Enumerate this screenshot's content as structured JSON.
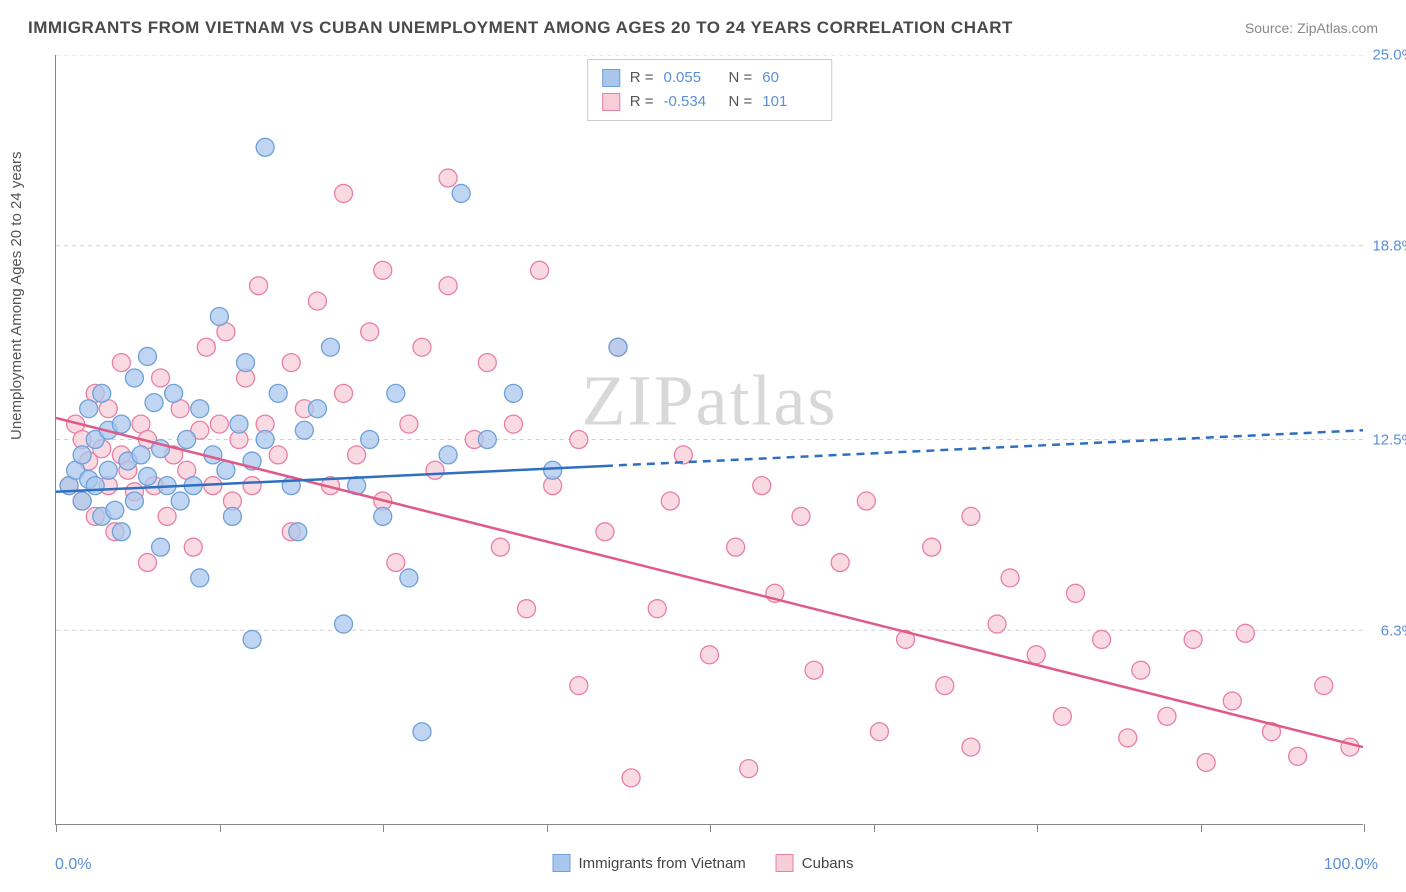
{
  "title": "IMMIGRANTS FROM VIETNAM VS CUBAN UNEMPLOYMENT AMONG AGES 20 TO 24 YEARS CORRELATION CHART",
  "source": "Source: ZipAtlas.com",
  "y_axis_label": "Unemployment Among Ages 20 to 24 years",
  "watermark": "ZIPatlas",
  "chart": {
    "type": "scatter",
    "background_color": "#ffffff",
    "grid_color": "#d0d0d0",
    "axis_color": "#888888",
    "xlim": [
      0,
      100
    ],
    "ylim": [
      0,
      25
    ],
    "x_ticks": [
      0,
      12.5,
      25,
      37.5,
      50,
      62.5,
      75,
      87.5,
      100
    ],
    "y_grid": [
      {
        "v": 25.0,
        "label": "25.0%"
      },
      {
        "v": 18.8,
        "label": "18.8%"
      },
      {
        "v": 12.5,
        "label": "12.5%"
      },
      {
        "v": 6.3,
        "label": "6.3%"
      }
    ],
    "x_min_label": "0.0%",
    "x_max_label": "100.0%",
    "tick_label_color": "#5b8fd6",
    "tick_label_fontsize": 15
  },
  "series": {
    "blue": {
      "name": "Immigrants from Vietnam",
      "marker_fill": "#a9c7ec",
      "marker_stroke": "#6fa0d9",
      "marker_radius": 9,
      "marker_opacity": 0.75,
      "line_color": "#2e6fc0",
      "line_width": 2.5,
      "R": "0.055",
      "N": "60",
      "trend": {
        "x1": 0,
        "y1": 10.8,
        "x2": 100,
        "y2": 12.8,
        "solid_until_x": 42
      },
      "points": [
        [
          1,
          11
        ],
        [
          1.5,
          11.5
        ],
        [
          2,
          12
        ],
        [
          2,
          10.5
        ],
        [
          2.5,
          11.2
        ],
        [
          2.5,
          13.5
        ],
        [
          3,
          12.5
        ],
        [
          3,
          11
        ],
        [
          3.5,
          10
        ],
        [
          3.5,
          14
        ],
        [
          4,
          11.5
        ],
        [
          4,
          12.8
        ],
        [
          4.5,
          10.2
        ],
        [
          5,
          9.5
        ],
        [
          5,
          13
        ],
        [
          5.5,
          11.8
        ],
        [
          6,
          14.5
        ],
        [
          6,
          10.5
        ],
        [
          6.5,
          12
        ],
        [
          7,
          11.3
        ],
        [
          7,
          15.2
        ],
        [
          7.5,
          13.7
        ],
        [
          8,
          12.2
        ],
        [
          8,
          9
        ],
        [
          8.5,
          11
        ],
        [
          9,
          14
        ],
        [
          9.5,
          10.5
        ],
        [
          10,
          12.5
        ],
        [
          10.5,
          11
        ],
        [
          11,
          13.5
        ],
        [
          11,
          8
        ],
        [
          12,
          12
        ],
        [
          12.5,
          16.5
        ],
        [
          13,
          11.5
        ],
        [
          13.5,
          10
        ],
        [
          14,
          13
        ],
        [
          14.5,
          15
        ],
        [
          15,
          6
        ],
        [
          15,
          11.8
        ],
        [
          16,
          12.5
        ],
        [
          16,
          22
        ],
        [
          17,
          14
        ],
        [
          18,
          11
        ],
        [
          18.5,
          9.5
        ],
        [
          19,
          12.8
        ],
        [
          20,
          13.5
        ],
        [
          21,
          15.5
        ],
        [
          22,
          6.5
        ],
        [
          23,
          11
        ],
        [
          24,
          12.5
        ],
        [
          25,
          10
        ],
        [
          26,
          14
        ],
        [
          27,
          8
        ],
        [
          28,
          3
        ],
        [
          30,
          12
        ],
        [
          31,
          20.5
        ],
        [
          33,
          12.5
        ],
        [
          35,
          14
        ],
        [
          38,
          11.5
        ],
        [
          43,
          15.5
        ]
      ]
    },
    "pink": {
      "name": "Cubans",
      "marker_fill": "#f7cdd8",
      "marker_stroke": "#e97fa3",
      "marker_radius": 9,
      "marker_opacity": 0.75,
      "line_color": "#e05a86",
      "line_width": 2.5,
      "R": "-0.534",
      "N": "101",
      "trend": {
        "x1": 0,
        "y1": 13.2,
        "x2": 100,
        "y2": 2.5,
        "solid_until_x": 100
      },
      "points": [
        [
          1,
          11
        ],
        [
          1.5,
          13
        ],
        [
          2,
          10.5
        ],
        [
          2,
          12.5
        ],
        [
          2.5,
          11.8
        ],
        [
          3,
          10
        ],
        [
          3,
          14
        ],
        [
          3.5,
          12.2
        ],
        [
          4,
          11
        ],
        [
          4,
          13.5
        ],
        [
          4.5,
          9.5
        ],
        [
          5,
          12
        ],
        [
          5,
          15
        ],
        [
          5.5,
          11.5
        ],
        [
          6,
          10.8
        ],
        [
          6.5,
          13
        ],
        [
          7,
          12.5
        ],
        [
          7,
          8.5
        ],
        [
          7.5,
          11
        ],
        [
          8,
          14.5
        ],
        [
          8.5,
          10
        ],
        [
          9,
          12
        ],
        [
          9.5,
          13.5
        ],
        [
          10,
          11.5
        ],
        [
          10.5,
          9
        ],
        [
          11,
          12.8
        ],
        [
          11.5,
          15.5
        ],
        [
          12,
          11
        ],
        [
          12.5,
          13
        ],
        [
          13,
          16
        ],
        [
          13.5,
          10.5
        ],
        [
          14,
          12.5
        ],
        [
          14.5,
          14.5
        ],
        [
          15,
          11
        ],
        [
          15.5,
          17.5
        ],
        [
          16,
          13
        ],
        [
          17,
          12
        ],
        [
          18,
          15
        ],
        [
          18,
          9.5
        ],
        [
          19,
          13.5
        ],
        [
          20,
          17
        ],
        [
          21,
          11
        ],
        [
          22,
          14
        ],
        [
          22,
          20.5
        ],
        [
          23,
          12
        ],
        [
          24,
          16
        ],
        [
          25,
          10.5
        ],
        [
          25,
          18
        ],
        [
          26,
          8.5
        ],
        [
          27,
          13
        ],
        [
          28,
          15.5
        ],
        [
          29,
          11.5
        ],
        [
          30,
          17.5
        ],
        [
          30,
          21
        ],
        [
          32,
          12.5
        ],
        [
          33,
          15
        ],
        [
          34,
          9
        ],
        [
          35,
          13
        ],
        [
          36,
          7
        ],
        [
          37,
          18
        ],
        [
          38,
          11
        ],
        [
          40,
          12.5
        ],
        [
          40,
          4.5
        ],
        [
          42,
          9.5
        ],
        [
          43,
          15.5
        ],
        [
          44,
          1.5
        ],
        [
          46,
          7
        ],
        [
          47,
          10.5
        ],
        [
          48,
          12
        ],
        [
          50,
          5.5
        ],
        [
          52,
          9
        ],
        [
          53,
          1.8
        ],
        [
          54,
          11
        ],
        [
          55,
          7.5
        ],
        [
          57,
          10
        ],
        [
          58,
          5
        ],
        [
          60,
          8.5
        ],
        [
          62,
          10.5
        ],
        [
          63,
          3
        ],
        [
          65,
          6
        ],
        [
          67,
          9
        ],
        [
          68,
          4.5
        ],
        [
          70,
          10
        ],
        [
          70,
          2.5
        ],
        [
          72,
          6.5
        ],
        [
          73,
          8
        ],
        [
          75,
          5.5
        ],
        [
          77,
          3.5
        ],
        [
          78,
          7.5
        ],
        [
          80,
          6
        ],
        [
          82,
          2.8
        ],
        [
          83,
          5
        ],
        [
          85,
          3.5
        ],
        [
          87,
          6
        ],
        [
          88,
          2
        ],
        [
          90,
          4
        ],
        [
          91,
          6.2
        ],
        [
          93,
          3
        ],
        [
          95,
          2.2
        ],
        [
          97,
          4.5
        ],
        [
          99,
          2.5
        ]
      ]
    }
  },
  "legend_bottom": [
    {
      "key": "blue"
    },
    {
      "key": "pink"
    }
  ]
}
